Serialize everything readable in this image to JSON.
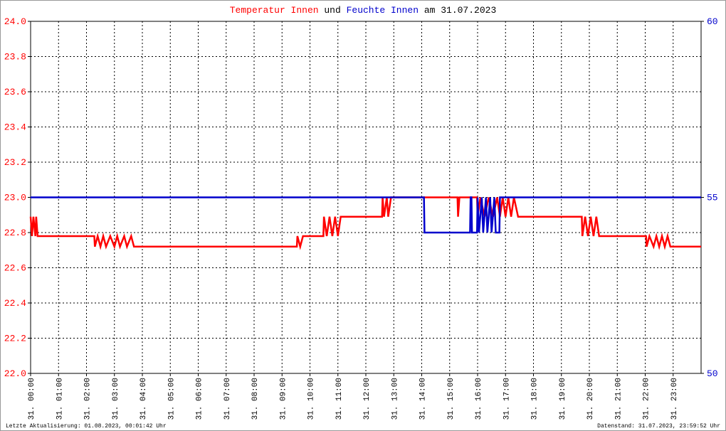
{
  "chart_data": {
    "type": "line",
    "title_mid": "und",
    "title_end": "am 31.07.2023",
    "footer_left": "Letzte Aktualisierung: 01.08.2023, 00:01:42 Uhr",
    "footer_right": "Datenstand: 31.07.2023, 23:59:52 Uhr",
    "xlim": [
      0,
      24
    ],
    "xticks": [
      {
        "value": 0,
        "label": "31. 00:00"
      },
      {
        "value": 1,
        "label": "31. 01:00"
      },
      {
        "value": 2,
        "label": "31. 02:00"
      },
      {
        "value": 3,
        "label": "31. 03:00"
      },
      {
        "value": 4,
        "label": "31. 04:00"
      },
      {
        "value": 5,
        "label": "31. 05:00"
      },
      {
        "value": 6,
        "label": "31. 06:00"
      },
      {
        "value": 7,
        "label": "31. 07:00"
      },
      {
        "value": 8,
        "label": "31. 08:00"
      },
      {
        "value": 9,
        "label": "31. 09:00"
      },
      {
        "value": 10,
        "label": "31. 10:00"
      },
      {
        "value": 11,
        "label": "31. 11:00"
      },
      {
        "value": 12,
        "label": "31. 12:00"
      },
      {
        "value": 13,
        "label": "31. 13:00"
      },
      {
        "value": 14,
        "label": "31. 14:00"
      },
      {
        "value": 15,
        "label": "31. 15:00"
      },
      {
        "value": 16,
        "label": "31. 16:00"
      },
      {
        "value": 17,
        "label": "31. 17:00"
      },
      {
        "value": 18,
        "label": "31. 18:00"
      },
      {
        "value": 19,
        "label": "31. 19:00"
      },
      {
        "value": 20,
        "label": "31. 20:00"
      },
      {
        "value": 21,
        "label": "31. 21:00"
      },
      {
        "value": 22,
        "label": "31. 22:00"
      },
      {
        "value": 23,
        "label": "31. 23:00"
      }
    ],
    "ylim": [
      22.0,
      24.0
    ],
    "yticks": [
      {
        "value": 22.0,
        "label": "22.0"
      },
      22.2,
      22.4,
      22.6,
      22.8,
      {
        "value": 23.0,
        "label": "23.0"
      },
      23.2,
      23.4,
      23.6,
      23.8,
      {
        "value": 24.0,
        "label": "24.0"
      }
    ],
    "y2lim": [
      50,
      60
    ],
    "y2ticks": [
      50,
      55,
      60
    ],
    "grid": true,
    "series": [
      {
        "name": "Temperatur Innen",
        "color": "#ff0000",
        "x": [
          0,
          0.05,
          0.1,
          0.17,
          0.2,
          0.25,
          2.28,
          2.3,
          2.4,
          2.5,
          2.6,
          2.7,
          2.85,
          3.0,
          3.1,
          3.2,
          3.35,
          3.45,
          3.6,
          3.7,
          9.53,
          9.55,
          9.65,
          9.75,
          10.48,
          10.5,
          10.6,
          10.7,
          10.8,
          10.9,
          11.0,
          11.1,
          12.58,
          12.6,
          12.65,
          12.75,
          12.8,
          12.9,
          15.28,
          15.3,
          15.35,
          15.98,
          16.0,
          16.1,
          16.25,
          16.4,
          16.55,
          16.7,
          16.8,
          16.9,
          17.0,
          17.1,
          17.2,
          17.3,
          17.45,
          19.73,
          19.75,
          19.85,
          19.95,
          20.05,
          20.15,
          20.25,
          20.35,
          22.03,
          22.05,
          22.15,
          22.3,
          22.4,
          22.5,
          22.6,
          22.7,
          22.8,
          22.9,
          24
        ],
        "values": [
          22.89,
          22.78,
          22.89,
          22.78,
          22.89,
          22.78,
          22.78,
          22.72,
          22.78,
          22.72,
          22.78,
          22.72,
          22.78,
          22.72,
          22.78,
          22.72,
          22.78,
          22.72,
          22.78,
          22.72,
          22.72,
          22.78,
          22.72,
          22.78,
          22.78,
          22.89,
          22.78,
          22.89,
          22.78,
          22.89,
          22.78,
          22.89,
          22.89,
          23.0,
          22.89,
          23.0,
          22.89,
          23.0,
          23.0,
          22.89,
          23.0,
          23.0,
          22.89,
          23.0,
          22.89,
          23.0,
          22.89,
          23.0,
          22.89,
          23.0,
          22.89,
          23.0,
          22.89,
          23.0,
          22.89,
          22.89,
          22.78,
          22.89,
          22.78,
          22.89,
          22.78,
          22.89,
          22.78,
          22.78,
          22.72,
          22.78,
          22.72,
          22.78,
          22.72,
          22.78,
          22.72,
          22.78,
          22.72,
          22.72
        ]
      },
      {
        "name": "Feuchte Innen",
        "color": "#0000cc",
        "axis": "y2",
        "x": [
          0,
          14.08,
          14.1,
          15.73,
          15.75,
          15.78,
          15.8,
          15.98,
          16.0,
          16.05,
          16.15,
          16.2,
          16.3,
          16.35,
          16.45,
          16.5,
          16.6,
          16.65,
          16.78,
          16.8,
          24
        ],
        "values": [
          55,
          55,
          54,
          54,
          55,
          55,
          54,
          54,
          55,
          54,
          55,
          54,
          55,
          54,
          55,
          54,
          55,
          54,
          54,
          55,
          55
        ]
      }
    ]
  }
}
